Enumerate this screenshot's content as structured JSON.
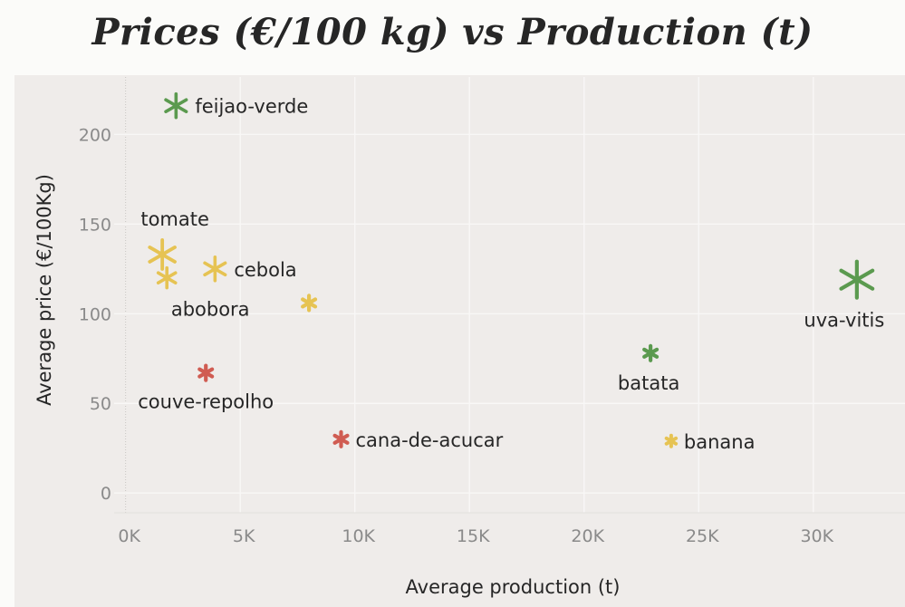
{
  "chart_data": {
    "type": "scatter",
    "title": "Prices (€/100 kg) vs Production (t)",
    "xlabel": "Average production (t)",
    "ylabel": "Average price (€/100Kg)",
    "xlim": [
      -500,
      34000
    ],
    "ylim": [
      -10,
      232
    ],
    "x_ticks": [
      {
        "value": 0,
        "label": "0K"
      },
      {
        "value": 5000,
        "label": "5K"
      },
      {
        "value": 10000,
        "label": "10K"
      },
      {
        "value": 15000,
        "label": "15K"
      },
      {
        "value": 20000,
        "label": "20K"
      },
      {
        "value": 25000,
        "label": "25K"
      },
      {
        "value": 30000,
        "label": "30K"
      }
    ],
    "y_ticks": [
      {
        "value": 0,
        "label": "0"
      },
      {
        "value": 50,
        "label": "50"
      },
      {
        "value": 100,
        "label": "100"
      },
      {
        "value": 150,
        "label": "150"
      },
      {
        "value": 200,
        "label": "200"
      }
    ],
    "grid": true,
    "points": [
      {
        "label": "feijao-verde",
        "x": 2200,
        "y": 216,
        "color": "#5b9a4f",
        "size": "medium",
        "label_pos": "right"
      },
      {
        "label": "tomate",
        "x": 1600,
        "y": 133,
        "color": "#e6c353",
        "size": "large",
        "label_pos": "above"
      },
      {
        "label": "cebola",
        "x": 3900,
        "y": 125,
        "color": "#e6c353",
        "size": "medium",
        "label_pos": "right"
      },
      {
        "label": "abobora",
        "x": 1800,
        "y": 120,
        "color": "#e6c353",
        "size": "small",
        "label_pos": "below"
      },
      {
        "label": "",
        "x": 8000,
        "y": 106,
        "color": "#e6c353",
        "size": "tiny",
        "label_pos": "none"
      },
      {
        "label": "couve-repolho",
        "x": 3500,
        "y": 67,
        "color": "#d05c52",
        "size": "tiny",
        "label_pos": "below"
      },
      {
        "label": "cana-de-acucar",
        "x": 9400,
        "y": 30,
        "color": "#d05c52",
        "size": "tiny",
        "label_pos": "right"
      },
      {
        "label": "batata",
        "x": 22900,
        "y": 78,
        "color": "#5b9a4f",
        "size": "tiny",
        "label_pos": "below"
      },
      {
        "label": "banana",
        "x": 23800,
        "y": 29,
        "color": "#e6c353",
        "size": "xtiny",
        "label_pos": "right"
      },
      {
        "label": "uva-vitis",
        "x": 31900,
        "y": 119,
        "color": "#5b9a4f",
        "size": "xlarge",
        "label_pos": "below"
      }
    ]
  },
  "colors": {
    "page_background": "#fbfbf9",
    "plot_background": "#efecea",
    "grid": "#f8f7f6",
    "text": "#262626",
    "tick_text": "#8a8a8a"
  }
}
